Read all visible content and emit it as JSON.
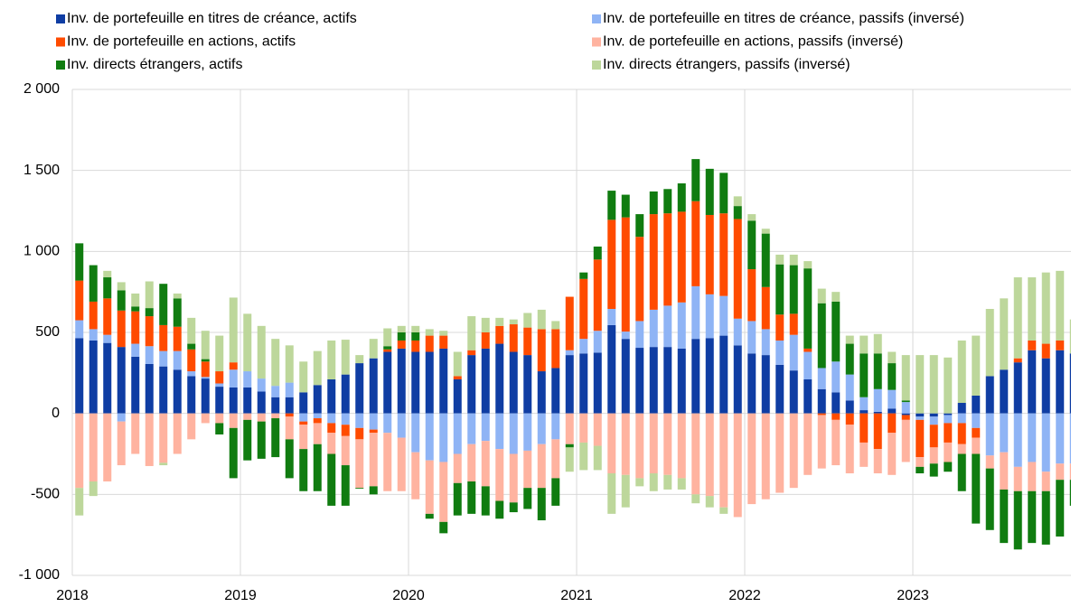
{
  "chart_data": {
    "type": "bar",
    "stacked": true,
    "grid": true,
    "categories": [
      "2018",
      null,
      null,
      null,
      null,
      null,
      null,
      null,
      null,
      null,
      null,
      null,
      "2019",
      null,
      null,
      null,
      null,
      null,
      null,
      null,
      null,
      null,
      null,
      null,
      "2020",
      null,
      null,
      null,
      null,
      null,
      null,
      null,
      null,
      null,
      null,
      null,
      "2021",
      null,
      null,
      null,
      null,
      null,
      null,
      null,
      null,
      null,
      null,
      null,
      "2022",
      null,
      null,
      null,
      null,
      null,
      null,
      null,
      null,
      null,
      null,
      null,
      "2023",
      null,
      null,
      null,
      null,
      null,
      null,
      null,
      null,
      null,
      null,
      null
    ],
    "ylim": [
      -1000,
      2000
    ],
    "yticks": [
      {
        "value": -1000,
        "label": "-1 000"
      },
      -500,
      0,
      500,
      {
        "value": 1000,
        "label": "1 000"
      },
      {
        "value": 1500,
        "label": "1 500"
      },
      {
        "value": 2000,
        "label": "2 000"
      }
    ],
    "series": [
      {
        "name": "Inv. de portefeuille en titres de créance, actifs",
        "color": "#0f3da3",
        "values": [
          465,
          450,
          435,
          410,
          350,
          305,
          290,
          270,
          230,
          215,
          165,
          160,
          160,
          135,
          100,
          100,
          130,
          175,
          210,
          240,
          310,
          340,
          380,
          400,
          380,
          380,
          400,
          210,
          360,
          400,
          430,
          380,
          360,
          260,
          280,
          360,
          370,
          375,
          545,
          460,
          405,
          410,
          410,
          400,
          460,
          465,
          480,
          420,
          370,
          360,
          300,
          265,
          210,
          150,
          130,
          80,
          20,
          10,
          30,
          -10,
          -20,
          -20,
          -10,
          65,
          110,
          230,
          270,
          315,
          390,
          340,
          390,
          370
        ]
      },
      {
        "name": "Inv. de portefeuille en titres de créance, passifs (inversé)",
        "color": "#8fb4f5",
        "values": [
          110,
          70,
          50,
          -50,
          80,
          110,
          95,
          115,
          30,
          10,
          20,
          110,
          100,
          80,
          70,
          90,
          -50,
          -30,
          -60,
          -70,
          -90,
          -100,
          -120,
          -150,
          -240,
          -290,
          -300,
          -250,
          -190,
          -170,
          -220,
          -250,
          -230,
          -190,
          -160,
          30,
          90,
          135,
          100,
          45,
          165,
          230,
          255,
          285,
          325,
          270,
          245,
          165,
          200,
          160,
          150,
          220,
          170,
          130,
          190,
          160,
          80,
          140,
          115,
          70,
          -20,
          -50,
          -50,
          -60,
          -90,
          -260,
          -240,
          -330,
          -300,
          -360,
          -310,
          -310
        ]
      },
      {
        "name": "Inv. de portefeuille en actions, actifs",
        "color": "#ff4b00",
        "values": [
          245,
          170,
          225,
          225,
          200,
          185,
          160,
          150,
          135,
          95,
          75,
          45,
          0,
          0,
          0,
          -20,
          -20,
          -30,
          -60,
          -70,
          -70,
          -20,
          15,
          50,
          70,
          100,
          80,
          20,
          30,
          100,
          110,
          170,
          170,
          260,
          240,
          330,
          370,
          440,
          550,
          705,
          520,
          590,
          570,
          560,
          525,
          490,
          510,
          615,
          320,
          260,
          160,
          130,
          20,
          -10,
          -40,
          -70,
          -180,
          -220,
          -120,
          -30,
          -230,
          -140,
          -120,
          -130,
          -60,
          0,
          0,
          25,
          60,
          90,
          60,
          0
        ]
      },
      {
        "name": "Inv. de portefeuille en actions, passifs (inversé)",
        "color": "#ffb3a0",
        "values": [
          -460,
          -420,
          -420,
          -270,
          -250,
          -325,
          -305,
          -250,
          -160,
          -60,
          -60,
          -90,
          -40,
          -50,
          -30,
          -140,
          -150,
          -130,
          -130,
          -180,
          -300,
          -330,
          -360,
          -330,
          -290,
          -330,
          -370,
          -180,
          -230,
          -280,
          -320,
          -300,
          -230,
          -270,
          -240,
          -190,
          -180,
          -200,
          -370,
          -380,
          -400,
          -370,
          -380,
          -400,
          -500,
          -510,
          -580,
          -640,
          -560,
          -530,
          -490,
          -460,
          -380,
          -330,
          -280,
          -300,
          -150,
          -150,
          -260,
          -260,
          -60,
          -100,
          -120,
          -60,
          -100,
          -80,
          -230,
          -150,
          -180,
          -120,
          -100,
          -100
        ]
      },
      {
        "name": "Inv. directs étrangers, actifs",
        "color": "#107c10",
        "values": [
          230,
          225,
          130,
          125,
          30,
          50,
          255,
          175,
          35,
          15,
          -70,
          -310,
          -250,
          -230,
          -240,
          -240,
          -260,
          -290,
          -320,
          -250,
          -5,
          -50,
          20,
          50,
          50,
          -30,
          -70,
          -200,
          -200,
          -180,
          -110,
          -60,
          -130,
          -200,
          -170,
          -20,
          40,
          80,
          180,
          140,
          140,
          140,
          150,
          175,
          260,
          285,
          250,
          80,
          300,
          330,
          310,
          300,
          495,
          400,
          370,
          190,
          270,
          220,
          165,
          10,
          -40,
          -80,
          -60,
          -230,
          -430,
          -380,
          -330,
          -360,
          -320,
          -330,
          -350,
          -160
        ]
      },
      {
        "name": "Inv. directs étrangers, passifs (inversé)",
        "color": "#bdd79b",
        "values": [
          -170,
          -90,
          40,
          50,
          80,
          165,
          -15,
          30,
          160,
          175,
          220,
          400,
          355,
          325,
          290,
          230,
          190,
          210,
          240,
          215,
          50,
          120,
          110,
          40,
          40,
          40,
          30,
          150,
          210,
          90,
          50,
          30,
          90,
          120,
          50,
          -150,
          -170,
          -150,
          -250,
          -200,
          -50,
          -110,
          -90,
          -70,
          -55,
          -70,
          -40,
          60,
          40,
          30,
          60,
          65,
          45,
          90,
          60,
          50,
          110,
          120,
          70,
          280,
          360,
          360,
          345,
          385,
          370,
          415,
          440,
          500,
          390,
          440,
          430,
          210
        ]
      }
    ]
  }
}
